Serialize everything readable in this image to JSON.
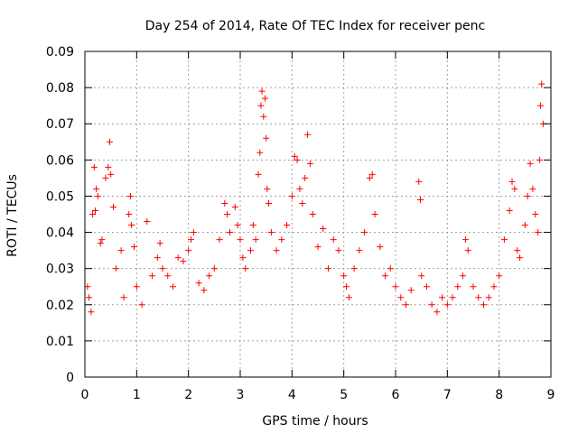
{
  "chart_data": {
    "type": "scatter",
    "title": "Day 254 of 2014, Rate Of TEC Index for receiver penc",
    "xlabel": "GPS time / hours",
    "ylabel": "ROTI / TECUs",
    "xlim": [
      0,
      9
    ],
    "ylim": [
      0,
      0.09
    ],
    "xticks": [
      "0",
      "1",
      "2",
      "3",
      "4",
      "5",
      "6",
      "7",
      "8",
      "9"
    ],
    "yticks": [
      "0",
      "0.01",
      "0.02",
      "0.03",
      "0.04",
      "0.05",
      "0.06",
      "0.07",
      "0.08",
      "0.09"
    ],
    "grid": true,
    "marker": "+",
    "series": [
      {
        "name": "ROTI",
        "color": "#ff0000",
        "points": [
          [
            0.05,
            0.025
          ],
          [
            0.08,
            0.022
          ],
          [
            0.12,
            0.018
          ],
          [
            0.15,
            0.045
          ],
          [
            0.18,
            0.058
          ],
          [
            0.2,
            0.046
          ],
          [
            0.22,
            0.052
          ],
          [
            0.25,
            0.05
          ],
          [
            0.3,
            0.037
          ],
          [
            0.33,
            0.038
          ],
          [
            0.4,
            0.055
          ],
          [
            0.45,
            0.058
          ],
          [
            0.48,
            0.065
          ],
          [
            0.5,
            0.056
          ],
          [
            0.55,
            0.047
          ],
          [
            0.6,
            0.03
          ],
          [
            0.7,
            0.035
          ],
          [
            0.75,
            0.022
          ],
          [
            0.85,
            0.045
          ],
          [
            0.88,
            0.05
          ],
          [
            0.9,
            0.042
          ],
          [
            0.95,
            0.036
          ],
          [
            1.0,
            0.025
          ],
          [
            1.1,
            0.02
          ],
          [
            1.2,
            0.043
          ],
          [
            1.3,
            0.028
          ],
          [
            1.4,
            0.033
          ],
          [
            1.45,
            0.037
          ],
          [
            1.5,
            0.03
          ],
          [
            1.6,
            0.028
          ],
          [
            1.7,
            0.025
          ],
          [
            1.8,
            0.033
          ],
          [
            1.9,
            0.032
          ],
          [
            2.0,
            0.035
          ],
          [
            2.05,
            0.038
          ],
          [
            2.1,
            0.04
          ],
          [
            2.2,
            0.026
          ],
          [
            2.3,
            0.024
          ],
          [
            2.4,
            0.028
          ],
          [
            2.5,
            0.03
          ],
          [
            2.6,
            0.038
          ],
          [
            2.7,
            0.048
          ],
          [
            2.75,
            0.045
          ],
          [
            2.8,
            0.04
          ],
          [
            2.9,
            0.047
          ],
          [
            2.95,
            0.042
          ],
          [
            3.0,
            0.038
          ],
          [
            3.05,
            0.033
          ],
          [
            3.1,
            0.03
          ],
          [
            3.2,
            0.035
          ],
          [
            3.25,
            0.042
          ],
          [
            3.3,
            0.038
          ],
          [
            3.35,
            0.056
          ],
          [
            3.38,
            0.062
          ],
          [
            3.4,
            0.075
          ],
          [
            3.42,
            0.079
          ],
          [
            3.45,
            0.072
          ],
          [
            3.48,
            0.077
          ],
          [
            3.5,
            0.066
          ],
          [
            3.52,
            0.052
          ],
          [
            3.55,
            0.048
          ],
          [
            3.6,
            0.04
          ],
          [
            3.7,
            0.035
          ],
          [
            3.8,
            0.038
          ],
          [
            3.9,
            0.042
          ],
          [
            4.0,
            0.05
          ],
          [
            4.05,
            0.061
          ],
          [
            4.1,
            0.06
          ],
          [
            4.15,
            0.052
          ],
          [
            4.2,
            0.048
          ],
          [
            4.25,
            0.055
          ],
          [
            4.3,
            0.067
          ],
          [
            4.35,
            0.059
          ],
          [
            4.4,
            0.045
          ],
          [
            4.5,
            0.036
          ],
          [
            4.6,
            0.041
          ],
          [
            4.7,
            0.03
          ],
          [
            4.8,
            0.038
          ],
          [
            4.9,
            0.035
          ],
          [
            5.0,
            0.028
          ],
          [
            5.05,
            0.025
          ],
          [
            5.1,
            0.022
          ],
          [
            5.2,
            0.03
          ],
          [
            5.3,
            0.035
          ],
          [
            5.4,
            0.04
          ],
          [
            5.5,
            0.055
          ],
          [
            5.55,
            0.056
          ],
          [
            5.6,
            0.045
          ],
          [
            5.7,
            0.036
          ],
          [
            5.8,
            0.028
          ],
          [
            5.9,
            0.03
          ],
          [
            6.0,
            0.025
          ],
          [
            6.1,
            0.022
          ],
          [
            6.2,
            0.02
          ],
          [
            6.3,
            0.024
          ],
          [
            6.45,
            0.054
          ],
          [
            6.48,
            0.049
          ],
          [
            6.5,
            0.028
          ],
          [
            6.6,
            0.025
          ],
          [
            6.7,
            0.02
          ],
          [
            6.8,
            0.018
          ],
          [
            6.9,
            0.022
          ],
          [
            7.0,
            0.02
          ],
          [
            7.1,
            0.022
          ],
          [
            7.2,
            0.025
          ],
          [
            7.3,
            0.028
          ],
          [
            7.35,
            0.038
          ],
          [
            7.4,
            0.035
          ],
          [
            7.5,
            0.025
          ],
          [
            7.6,
            0.022
          ],
          [
            7.7,
            0.02
          ],
          [
            7.8,
            0.022
          ],
          [
            7.9,
            0.025
          ],
          [
            8.0,
            0.028
          ],
          [
            8.1,
            0.038
          ],
          [
            8.2,
            0.046
          ],
          [
            8.25,
            0.054
          ],
          [
            8.3,
            0.052
          ],
          [
            8.35,
            0.035
          ],
          [
            8.4,
            0.033
          ],
          [
            8.5,
            0.042
          ],
          [
            8.55,
            0.05
          ],
          [
            8.6,
            0.059
          ],
          [
            8.65,
            0.052
          ],
          [
            8.7,
            0.045
          ],
          [
            8.75,
            0.04
          ],
          [
            8.78,
            0.06
          ],
          [
            8.8,
            0.075
          ],
          [
            8.82,
            0.081
          ],
          [
            8.85,
            0.07
          ]
        ]
      }
    ]
  }
}
